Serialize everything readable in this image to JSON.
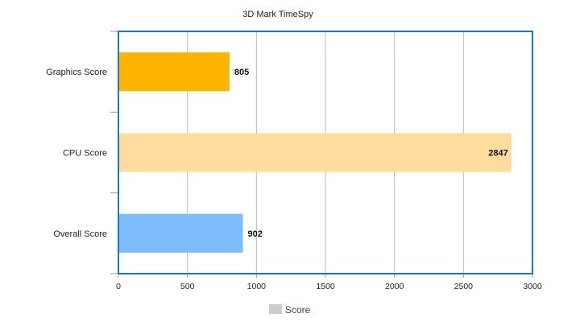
{
  "chart_data": {
    "type": "bar",
    "orientation": "horizontal",
    "title": "3D Mark TimeSpy",
    "categories": [
      "Graphics Score",
      "CPU Score",
      "Overall Score"
    ],
    "values": [
      805,
      2847,
      902
    ],
    "data_labels": [
      "805",
      "2847",
      "902"
    ],
    "bar_colors": [
      "#ffb400",
      "#fedc9e",
      "#7dbdfd"
    ],
    "xlim": [
      0,
      3000
    ],
    "xticks": [
      0,
      500,
      1000,
      1500,
      2000,
      2500,
      3000
    ],
    "xtick_labels": [
      "0",
      "500",
      "1000",
      "1500",
      "2000",
      "2500",
      "3000"
    ],
    "grid": true,
    "legend": {
      "position": "bottom",
      "label": "Score",
      "swatch_color": "#cccccc"
    },
    "frame_color": "#1a76c6",
    "grid_color": "#bbbbbb"
  }
}
